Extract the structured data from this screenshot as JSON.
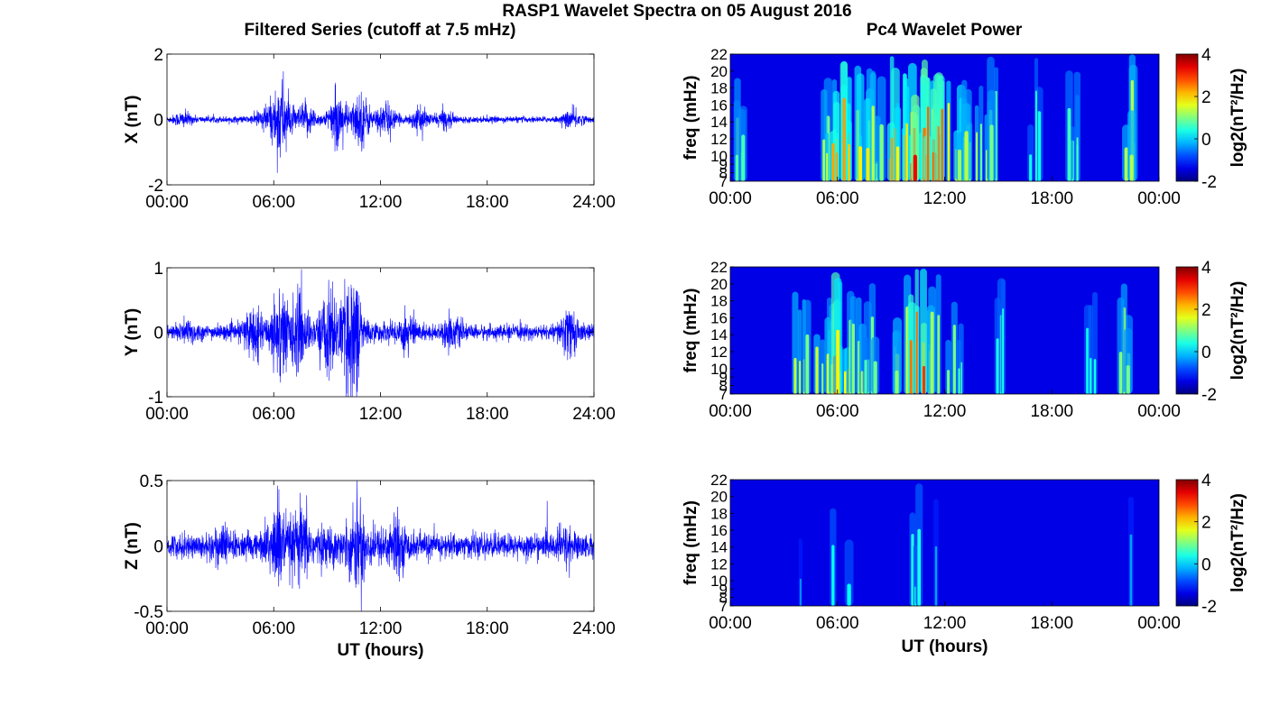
{
  "figure": {
    "title": "RASP1 Wavelet Spectra on 05 August 2016",
    "left_column_title": "Filtered Series (cutoff at 7.5 mHz)",
    "right_column_title": "Pc4 Wavelet Power"
  },
  "chart_data": [
    {
      "type": "line",
      "component": "X",
      "ylabel": "X (nT)",
      "xlabel": "",
      "xticks": [
        "00:00",
        "06:00",
        "12:00",
        "18:00",
        "24:00"
      ],
      "xlim_hours": [
        0,
        24
      ],
      "ylim": [
        -2,
        2
      ],
      "yticks": [
        "-2",
        "0",
        "2"
      ],
      "color": "#0000ff",
      "background_amplitude_nT": 0.05,
      "bursts": [
        {
          "t_hours": 0.9,
          "amp_nT": 0.22
        },
        {
          "t_hours": 5.5,
          "amp_nT": 0.3
        },
        {
          "t_hours": 6.4,
          "amp_nT": 1.1
        },
        {
          "t_hours": 7.8,
          "amp_nT": 0.35
        },
        {
          "t_hours": 9.6,
          "amp_nT": 0.55
        },
        {
          "t_hours": 10.9,
          "amp_nT": 0.6
        },
        {
          "t_hours": 12.3,
          "amp_nT": 0.4
        },
        {
          "t_hours": 14.2,
          "amp_nT": 0.3
        },
        {
          "t_hours": 15.6,
          "amp_nT": 0.25
        },
        {
          "t_hours": 22.8,
          "amp_nT": 0.3
        }
      ]
    },
    {
      "type": "line",
      "component": "Y",
      "ylabel": "Y (nT)",
      "xlabel": "",
      "xticks": [
        "00:00",
        "06:00",
        "12:00",
        "18:00",
        "24:00"
      ],
      "xlim_hours": [
        0,
        24
      ],
      "ylim": [
        -1,
        1
      ],
      "yticks": [
        "-1",
        "0",
        "1"
      ],
      "color": "#0000ff",
      "background_amplitude_nT": 0.06,
      "bursts": [
        {
          "t_hours": 1.2,
          "amp_nT": 0.15
        },
        {
          "t_hours": 4.8,
          "amp_nT": 0.35
        },
        {
          "t_hours": 6.3,
          "amp_nT": 0.6
        },
        {
          "t_hours": 7.4,
          "amp_nT": 0.4
        },
        {
          "t_hours": 9.1,
          "amp_nT": 0.45
        },
        {
          "t_hours": 10.4,
          "amp_nT": 0.75
        },
        {
          "t_hours": 13.5,
          "amp_nT": 0.25
        },
        {
          "t_hours": 16.0,
          "amp_nT": 0.2
        },
        {
          "t_hours": 22.6,
          "amp_nT": 0.4
        }
      ]
    },
    {
      "type": "line",
      "component": "Z",
      "ylabel": "Z (nT)",
      "xlabel": "UT (hours)",
      "xticks": [
        "00:00",
        "06:00",
        "12:00",
        "18:00",
        "24:00"
      ],
      "xlim_hours": [
        0,
        24
      ],
      "ylim": [
        -0.5,
        0.5
      ],
      "yticks": [
        "-0.5",
        "0",
        "0.5"
      ],
      "color": "#0000ff",
      "background_amplitude_nT": 0.05,
      "bursts": [
        {
          "t_hours": 3.0,
          "amp_nT": 0.1
        },
        {
          "t_hours": 6.2,
          "amp_nT": 0.25
        },
        {
          "t_hours": 7.5,
          "amp_nT": 0.15
        },
        {
          "t_hours": 10.8,
          "amp_nT": 0.18
        },
        {
          "t_hours": 12.8,
          "amp_nT": 0.12
        },
        {
          "t_hours": 22.4,
          "amp_nT": 0.1
        }
      ]
    },
    {
      "type": "heatmap",
      "component": "X",
      "ylabel": "freq (mHz)",
      "xlabel": "",
      "xticks": [
        "00:00",
        "06:00",
        "12:00",
        "18:00",
        "00:00"
      ],
      "xlim_hours": [
        0,
        24
      ],
      "ylim_mHz": [
        7,
        22
      ],
      "yticks": [
        "7",
        "8",
        "9",
        "10",
        "12",
        "14",
        "16",
        "18",
        "20",
        "22"
      ],
      "colorbar_label": "log2(nT²/Hz)",
      "colorbar_ticks": [
        "-2",
        "0",
        "2",
        "4"
      ],
      "clim": [
        -2,
        4
      ],
      "colormap": "jet",
      "activity": [
        {
          "t_hours": 0.8,
          "level": 1.0
        },
        {
          "t_hours": 5.6,
          "level": 1.5
        },
        {
          "t_hours": 6.2,
          "level": 3.0
        },
        {
          "t_hours": 6.8,
          "level": 2.5
        },
        {
          "t_hours": 7.6,
          "level": 2.0
        },
        {
          "t_hours": 8.4,
          "level": 1.5
        },
        {
          "t_hours": 9.3,
          "level": 2.5
        },
        {
          "t_hours": 10.0,
          "level": 3.0
        },
        {
          "t_hours": 10.5,
          "level": 3.5
        },
        {
          "t_hours": 11.2,
          "level": 3.0
        },
        {
          "t_hours": 11.8,
          "level": 3.5
        },
        {
          "t_hours": 12.6,
          "level": 2.0
        },
        {
          "t_hours": 13.4,
          "level": 1.5
        },
        {
          "t_hours": 14.2,
          "level": 1.5
        },
        {
          "t_hours": 15.0,
          "level": 1.0
        },
        {
          "t_hours": 17.0,
          "level": 0.5
        },
        {
          "t_hours": 19.1,
          "level": 1.0
        },
        {
          "t_hours": 22.3,
          "level": 1.5
        }
      ]
    },
    {
      "type": "heatmap",
      "component": "Y",
      "ylabel": "freq (mHz)",
      "xlabel": "",
      "xticks": [
        "00:00",
        "06:00",
        "12:00",
        "18:00",
        "00:00"
      ],
      "xlim_hours": [
        0,
        24
      ],
      "ylim_mHz": [
        7,
        22
      ],
      "yticks": [
        "7",
        "8",
        "9",
        "10",
        "12",
        "14",
        "16",
        "18",
        "20",
        "22"
      ],
      "colorbar_label": "log2(nT²/Hz)",
      "colorbar_ticks": [
        "-2",
        "0",
        "2",
        "4"
      ],
      "clim": [
        -2,
        4
      ],
      "colormap": "jet",
      "activity": [
        {
          "t_hours": 4.0,
          "level": 1.5
        },
        {
          "t_hours": 5.2,
          "level": 1.5
        },
        {
          "t_hours": 5.9,
          "level": 2.0
        },
        {
          "t_hours": 6.3,
          "level": 3.0
        },
        {
          "t_hours": 7.0,
          "level": 1.5
        },
        {
          "t_hours": 8.0,
          "level": 1.0
        },
        {
          "t_hours": 9.5,
          "level": 1.5
        },
        {
          "t_hours": 10.4,
          "level": 3.0
        },
        {
          "t_hours": 11.3,
          "level": 1.5
        },
        {
          "t_hours": 12.6,
          "level": 1.0
        },
        {
          "t_hours": 15.2,
          "level": 0.5
        },
        {
          "t_hours": 20.4,
          "level": 0.5
        },
        {
          "t_hours": 22.3,
          "level": 1.5
        }
      ]
    },
    {
      "type": "heatmap",
      "component": "Z",
      "ylabel": "freq (mHz)",
      "xlabel": "UT (hours)",
      "xticks": [
        "00:00",
        "06:00",
        "12:00",
        "18:00",
        "00:00"
      ],
      "xlim_hours": [
        0,
        24
      ],
      "ylim_mHz": [
        7,
        22
      ],
      "yticks": [
        "7",
        "8",
        "9",
        "10",
        "12",
        "14",
        "16",
        "18",
        "20",
        "22"
      ],
      "colorbar_label": "log2(nT²/Hz)",
      "colorbar_ticks": [
        "-2",
        "0",
        "2",
        "4"
      ],
      "clim": [
        -2,
        4
      ],
      "colormap": "jet",
      "activity": [
        {
          "t_hours": 4.1,
          "level": -0.5
        },
        {
          "t_hours": 6.2,
          "level": 0.3
        },
        {
          "t_hours": 10.6,
          "level": 0.5
        },
        {
          "t_hours": 11.3,
          "level": -0.5
        },
        {
          "t_hours": 22.3,
          "level": -0.5
        }
      ]
    }
  ]
}
